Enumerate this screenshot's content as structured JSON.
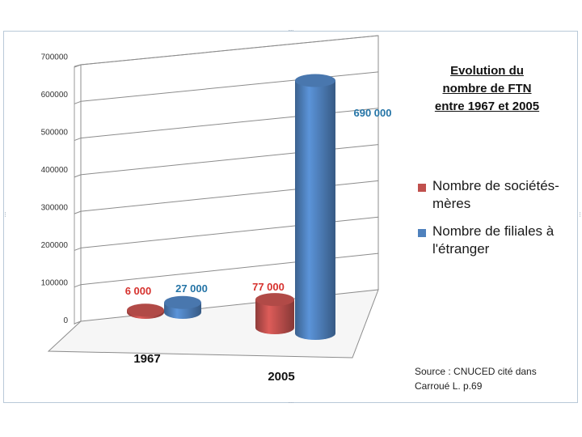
{
  "chart_data": {
    "type": "bar",
    "title": "Evolution du nombre de FTN entre 1967 et 2005",
    "categories": [
      "1967",
      "2005"
    ],
    "series": [
      {
        "name": "Nombre de sociétés-mères",
        "color": "#c0504d",
        "values": [
          6000,
          77000
        ],
        "labels": [
          "6 000",
          "77 000"
        ],
        "label_color": "#d6322e"
      },
      {
        "name": "Nombre de filiales à l'étranger",
        "color": "#4f81bd",
        "values": [
          27000,
          690000
        ],
        "labels": [
          "27 000",
          "690 000"
        ],
        "label_color": "#2474a6"
      }
    ],
    "yticks": [
      "0",
      "100000",
      "200000",
      "300000",
      "400000",
      "500000",
      "600000",
      "700000"
    ],
    "ylim": [
      0,
      700000
    ],
    "grid": true,
    "legend_position": "right",
    "three_d": true
  },
  "title": "Evolution du nombre de FTN entre 1967 et 2005",
  "title_lines": [
    "Evolution du",
    "nombre de FTN",
    "entre 1967 et 2005"
  ],
  "legend": [
    {
      "label": "Nombre de sociétés-mères",
      "color": "#c0504d"
    },
    {
      "label": "Nombre de filiales à l'étranger",
      "color": "#4f81bd"
    }
  ],
  "source": "Source : CNUCED cité dans Carroué L. p.69"
}
